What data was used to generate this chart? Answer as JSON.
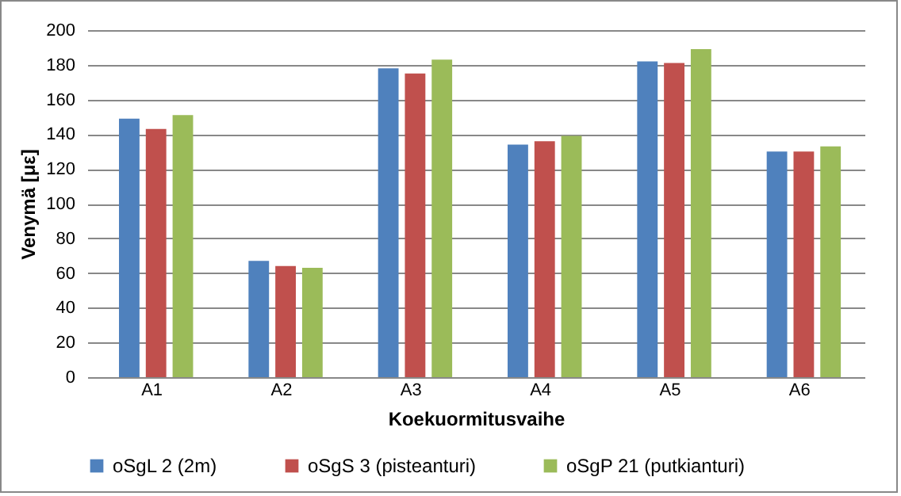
{
  "chart_data": {
    "type": "bar",
    "xlabel": "Koekuormitusvaihe",
    "ylabel": "Venymä [με]",
    "categories": [
      "A1",
      "A2",
      "A3",
      "A4",
      "A5",
      "A6"
    ],
    "series": [
      {
        "name": "oSgL 2 (2m)",
        "color": "#4f81bd",
        "values": [
          149,
          67,
          178,
          134,
          182,
          130
        ]
      },
      {
        "name": "oSgS 3 (pisteanturi)",
        "color": "#c0504d",
        "values": [
          143,
          64,
          175,
          136,
          181,
          130
        ]
      },
      {
        "name": "oSgP 21 (putkianturi)",
        "color": "#9bbb59",
        "values": [
          151,
          63,
          183,
          139,
          189,
          133
        ]
      }
    ],
    "ylim": [
      0,
      200
    ],
    "yticks": [
      0,
      20,
      40,
      60,
      80,
      100,
      120,
      140,
      160,
      180,
      200
    ],
    "grid": "y",
    "legend": "bottom"
  }
}
